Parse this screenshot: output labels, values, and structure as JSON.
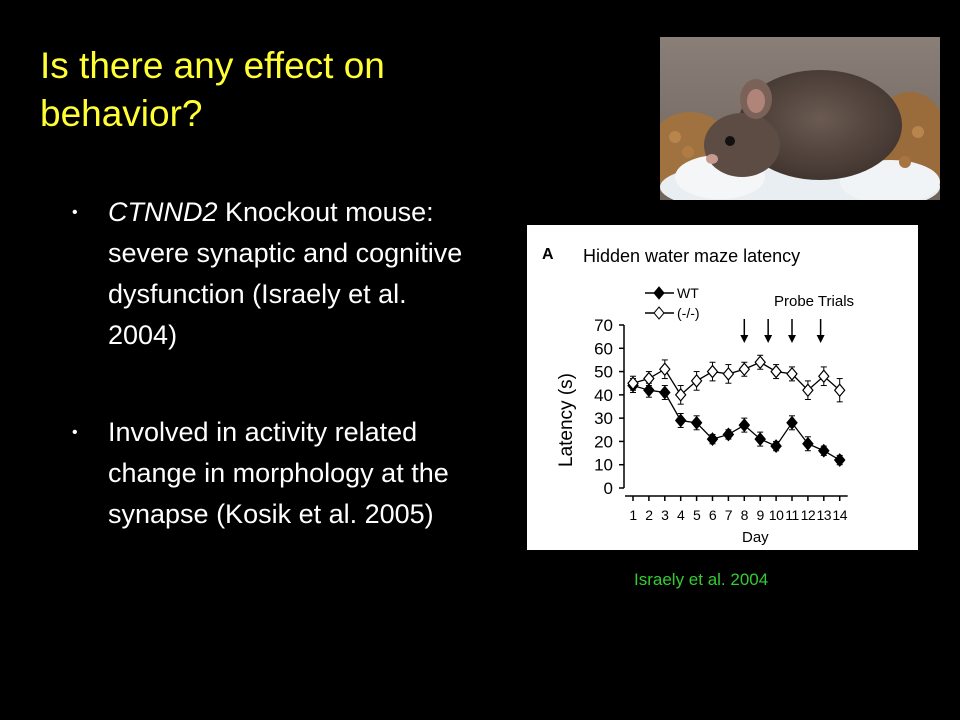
{
  "slide": {
    "title": "Is there any effect on behavior?",
    "bullets": [
      {
        "italic_prefix": "CTNND2",
        "text": " Knockout mouse: severe synaptic and cognitive dysfunction (Israely et al. 2004)"
      },
      {
        "italic_prefix": "",
        "text": "Involved in activity related change in morphology at the synapse (Kosik et al. 2005)"
      }
    ],
    "caption": "Israely et al. 2004",
    "colors": {
      "title": "#FFFF33",
      "caption": "#33CC33",
      "background": "#000000"
    }
  },
  "chart_data": {
    "type": "line",
    "panel_label": "A",
    "title": "Hidden water maze latency",
    "xlabel": "Day",
    "ylabel": "Latency (s)",
    "ylim": [
      0,
      70
    ],
    "yticks": [
      "0",
      "10",
      "20",
      "30",
      "40",
      "50",
      "60",
      "70"
    ],
    "x": [
      1,
      2,
      3,
      4,
      5,
      6,
      7,
      8,
      9,
      10,
      11,
      12,
      13,
      14
    ],
    "xtick_labels": [
      "1",
      "2",
      "3",
      "4",
      "5",
      "6",
      "7",
      "8",
      "9",
      "10",
      "11",
      "12",
      "13",
      "14"
    ],
    "series": [
      {
        "name": "WT",
        "marker": "filled-diamond",
        "values": [
          44,
          42,
          41,
          29,
          28,
          21,
          23,
          27,
          21,
          18,
          28,
          19,
          16,
          12
        ],
        "errors": [
          3,
          3,
          3,
          3,
          3,
          2,
          2,
          3,
          3,
          2,
          3,
          3,
          2,
          2
        ]
      },
      {
        "name": "(-/-)",
        "marker": "open-diamond",
        "values": [
          45,
          47,
          51,
          40,
          46,
          50,
          49,
          51,
          54,
          50,
          49,
          42,
          48,
          42
        ],
        "errors": [
          3,
          3,
          4,
          4,
          4,
          4,
          4,
          3,
          3,
          3,
          3,
          4,
          4,
          5
        ]
      }
    ],
    "annotation": {
      "text": "Probe Trials",
      "arrow_days": [
        8,
        9.5,
        11,
        12.8
      ]
    },
    "legend_position": "top-left",
    "grid": false
  }
}
